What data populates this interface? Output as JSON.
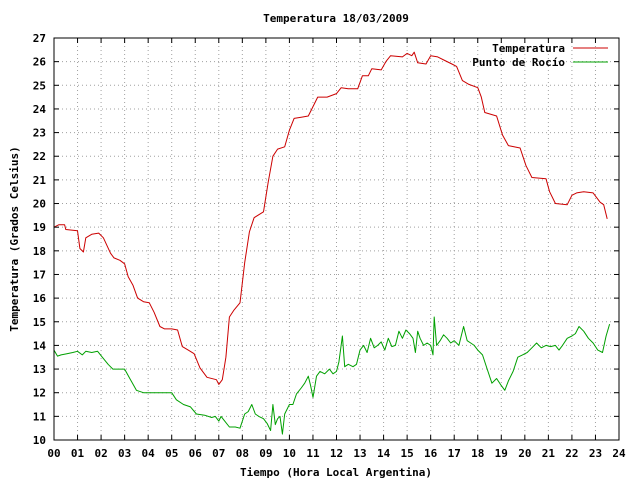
{
  "chart_data": {
    "type": "line",
    "title": "Temperatura 18/03/2009",
    "xlabel": "Tiempo (Hora Local Argentina)",
    "ylabel": "Temperatura (Grados Celsius)",
    "xlim": [
      0,
      24
    ],
    "ylim": [
      10,
      27
    ],
    "xticks": [
      "00",
      "01",
      "02",
      "03",
      "04",
      "05",
      "06",
      "07",
      "08",
      "09",
      "10",
      "11",
      "12",
      "13",
      "14",
      "15",
      "16",
      "17",
      "18",
      "19",
      "20",
      "21",
      "22",
      "23",
      "24"
    ],
    "yticks": [
      "10",
      "11",
      "12",
      "13",
      "14",
      "15",
      "16",
      "17",
      "18",
      "19",
      "20",
      "21",
      "22",
      "23",
      "24",
      "25",
      "26",
      "27"
    ],
    "grid": true,
    "legend_position": "top-right",
    "series": [
      {
        "name": "Temperatura",
        "color": "#cc0000",
        "points": [
          [
            0.0,
            19.0
          ],
          [
            0.2,
            19.1
          ],
          [
            0.45,
            19.1
          ],
          [
            0.5,
            18.9
          ],
          [
            1.0,
            18.85
          ],
          [
            1.1,
            18.1
          ],
          [
            1.25,
            17.95
          ],
          [
            1.35,
            18.55
          ],
          [
            1.6,
            18.7
          ],
          [
            1.9,
            18.75
          ],
          [
            2.1,
            18.55
          ],
          [
            2.4,
            17.9
          ],
          [
            2.55,
            17.7
          ],
          [
            2.8,
            17.6
          ],
          [
            3.0,
            17.45
          ],
          [
            3.15,
            16.9
          ],
          [
            3.35,
            16.55
          ],
          [
            3.55,
            16.0
          ],
          [
            3.8,
            15.85
          ],
          [
            4.05,
            15.8
          ],
          [
            4.25,
            15.4
          ],
          [
            4.5,
            14.8
          ],
          [
            4.7,
            14.7
          ],
          [
            5.0,
            14.7
          ],
          [
            5.25,
            14.65
          ],
          [
            5.45,
            13.95
          ],
          [
            5.7,
            13.8
          ],
          [
            5.95,
            13.65
          ],
          [
            6.2,
            13.05
          ],
          [
            6.5,
            12.65
          ],
          [
            6.9,
            12.55
          ],
          [
            7.0,
            12.35
          ],
          [
            7.15,
            12.55
          ],
          [
            7.3,
            13.5
          ],
          [
            7.45,
            15.2
          ],
          [
            7.65,
            15.5
          ],
          [
            7.9,
            15.8
          ],
          [
            8.1,
            17.5
          ],
          [
            8.3,
            18.8
          ],
          [
            8.5,
            19.4
          ],
          [
            8.9,
            19.65
          ],
          [
            9.1,
            20.9
          ],
          [
            9.3,
            22.0
          ],
          [
            9.5,
            22.3
          ],
          [
            9.8,
            22.4
          ],
          [
            10.0,
            23.1
          ],
          [
            10.2,
            23.6
          ],
          [
            10.5,
            23.65
          ],
          [
            10.8,
            23.7
          ],
          [
            11.0,
            24.1
          ],
          [
            11.2,
            24.5
          ],
          [
            11.6,
            24.5
          ],
          [
            12.0,
            24.65
          ],
          [
            12.2,
            24.9
          ],
          [
            12.5,
            24.85
          ],
          [
            12.9,
            24.85
          ],
          [
            13.1,
            25.4
          ],
          [
            13.35,
            25.4
          ],
          [
            13.5,
            25.7
          ],
          [
            13.9,
            25.65
          ],
          [
            14.1,
            26.0
          ],
          [
            14.3,
            26.25
          ],
          [
            14.8,
            26.2
          ],
          [
            15.0,
            26.35
          ],
          [
            15.2,
            26.25
          ],
          [
            15.3,
            26.4
          ],
          [
            15.45,
            25.95
          ],
          [
            15.8,
            25.9
          ],
          [
            16.0,
            26.25
          ],
          [
            16.3,
            26.2
          ],
          [
            16.6,
            26.05
          ],
          [
            16.9,
            25.9
          ],
          [
            17.1,
            25.8
          ],
          [
            17.35,
            25.2
          ],
          [
            17.6,
            25.05
          ],
          [
            18.0,
            24.9
          ],
          [
            18.15,
            24.5
          ],
          [
            18.3,
            23.85
          ],
          [
            18.8,
            23.7
          ],
          [
            19.05,
            22.9
          ],
          [
            19.3,
            22.45
          ],
          [
            19.8,
            22.35
          ],
          [
            20.05,
            21.6
          ],
          [
            20.3,
            21.1
          ],
          [
            20.9,
            21.05
          ],
          [
            21.05,
            20.5
          ],
          [
            21.3,
            20.0
          ],
          [
            21.8,
            19.95
          ],
          [
            22.0,
            20.35
          ],
          [
            22.2,
            20.45
          ],
          [
            22.5,
            20.5
          ],
          [
            22.9,
            20.45
          ],
          [
            23.2,
            20.05
          ],
          [
            23.35,
            19.95
          ],
          [
            23.5,
            19.35
          ]
        ]
      },
      {
        "name": "Punto de Rocío",
        "color": "#00a000",
        "points": [
          [
            0.0,
            13.8
          ],
          [
            0.15,
            13.55
          ],
          [
            0.3,
            13.6
          ],
          [
            0.55,
            13.65
          ],
          [
            0.8,
            13.7
          ],
          [
            1.0,
            13.75
          ],
          [
            1.2,
            13.6
          ],
          [
            1.35,
            13.75
          ],
          [
            1.6,
            13.7
          ],
          [
            1.85,
            13.75
          ],
          [
            2.05,
            13.5
          ],
          [
            2.3,
            13.2
          ],
          [
            2.5,
            13.0
          ],
          [
            2.75,
            13.0
          ],
          [
            3.0,
            13.0
          ],
          [
            3.25,
            12.55
          ],
          [
            3.5,
            12.1
          ],
          [
            3.8,
            12.0
          ],
          [
            4.1,
            12.0
          ],
          [
            4.4,
            12.0
          ],
          [
            4.7,
            12.0
          ],
          [
            5.0,
            12.0
          ],
          [
            5.2,
            11.7
          ],
          [
            5.5,
            11.5
          ],
          [
            5.8,
            11.4
          ],
          [
            6.05,
            11.1
          ],
          [
            6.4,
            11.05
          ],
          [
            6.7,
            10.95
          ],
          [
            6.85,
            11.0
          ],
          [
            7.0,
            10.8
          ],
          [
            7.1,
            11.0
          ],
          [
            7.25,
            10.8
          ],
          [
            7.45,
            10.55
          ],
          [
            7.7,
            10.55
          ],
          [
            7.9,
            10.5
          ],
          [
            8.1,
            11.1
          ],
          [
            8.25,
            11.2
          ],
          [
            8.4,
            11.5
          ],
          [
            8.55,
            11.1
          ],
          [
            8.7,
            11.0
          ],
          [
            8.9,
            10.9
          ],
          [
            9.05,
            10.7
          ],
          [
            9.2,
            10.4
          ],
          [
            9.3,
            11.5
          ],
          [
            9.4,
            10.65
          ],
          [
            9.5,
            10.9
          ],
          [
            9.6,
            11.0
          ],
          [
            9.7,
            10.25
          ],
          [
            9.8,
            11.1
          ],
          [
            10.0,
            11.5
          ],
          [
            10.15,
            11.5
          ],
          [
            10.3,
            11.95
          ],
          [
            10.5,
            12.2
          ],
          [
            10.65,
            12.4
          ],
          [
            10.8,
            12.7
          ],
          [
            10.9,
            12.3
          ],
          [
            11.0,
            11.8
          ],
          [
            11.15,
            12.7
          ],
          [
            11.3,
            12.9
          ],
          [
            11.5,
            12.8
          ],
          [
            11.7,
            13.0
          ],
          [
            11.85,
            12.8
          ],
          [
            12.0,
            12.9
          ],
          [
            12.1,
            13.3
          ],
          [
            12.25,
            14.4
          ],
          [
            12.35,
            13.1
          ],
          [
            12.5,
            13.2
          ],
          [
            12.7,
            13.1
          ],
          [
            12.85,
            13.2
          ],
          [
            13.0,
            13.8
          ],
          [
            13.15,
            14.0
          ],
          [
            13.3,
            13.7
          ],
          [
            13.45,
            14.3
          ],
          [
            13.6,
            13.9
          ],
          [
            13.75,
            14.0
          ],
          [
            13.9,
            14.15
          ],
          [
            14.05,
            13.8
          ],
          [
            14.2,
            14.3
          ],
          [
            14.35,
            13.95
          ],
          [
            14.5,
            14.0
          ],
          [
            14.65,
            14.6
          ],
          [
            14.8,
            14.3
          ],
          [
            14.95,
            14.65
          ],
          [
            15.1,
            14.5
          ],
          [
            15.25,
            14.3
          ],
          [
            15.35,
            13.7
          ],
          [
            15.45,
            14.6
          ],
          [
            15.55,
            14.3
          ],
          [
            15.7,
            14.0
          ],
          [
            15.85,
            14.1
          ],
          [
            16.0,
            14.0
          ],
          [
            16.1,
            13.6
          ],
          [
            16.15,
            15.2
          ],
          [
            16.25,
            14.0
          ],
          [
            16.4,
            14.2
          ],
          [
            16.55,
            14.45
          ],
          [
            16.7,
            14.3
          ],
          [
            16.85,
            14.1
          ],
          [
            17.0,
            14.2
          ],
          [
            17.2,
            14.0
          ],
          [
            17.4,
            14.8
          ],
          [
            17.55,
            14.2
          ],
          [
            17.7,
            14.1
          ],
          [
            17.85,
            14.0
          ],
          [
            18.0,
            13.8
          ],
          [
            18.2,
            13.6
          ],
          [
            18.4,
            13.0
          ],
          [
            18.6,
            12.4
          ],
          [
            18.8,
            12.6
          ],
          [
            19.0,
            12.3
          ],
          [
            19.15,
            12.1
          ],
          [
            19.3,
            12.5
          ],
          [
            19.5,
            12.9
          ],
          [
            19.7,
            13.5
          ],
          [
            19.9,
            13.6
          ],
          [
            20.1,
            13.7
          ],
          [
            20.3,
            13.9
          ],
          [
            20.5,
            14.1
          ],
          [
            20.7,
            13.9
          ],
          [
            20.9,
            14.0
          ],
          [
            21.1,
            13.95
          ],
          [
            21.3,
            14.0
          ],
          [
            21.45,
            13.8
          ],
          [
            21.6,
            14.0
          ],
          [
            21.8,
            14.3
          ],
          [
            22.0,
            14.4
          ],
          [
            22.15,
            14.5
          ],
          [
            22.3,
            14.8
          ],
          [
            22.5,
            14.6
          ],
          [
            22.7,
            14.3
          ],
          [
            22.9,
            14.1
          ],
          [
            23.1,
            13.8
          ],
          [
            23.3,
            13.7
          ],
          [
            23.45,
            14.4
          ],
          [
            23.6,
            14.9
          ]
        ]
      }
    ]
  }
}
